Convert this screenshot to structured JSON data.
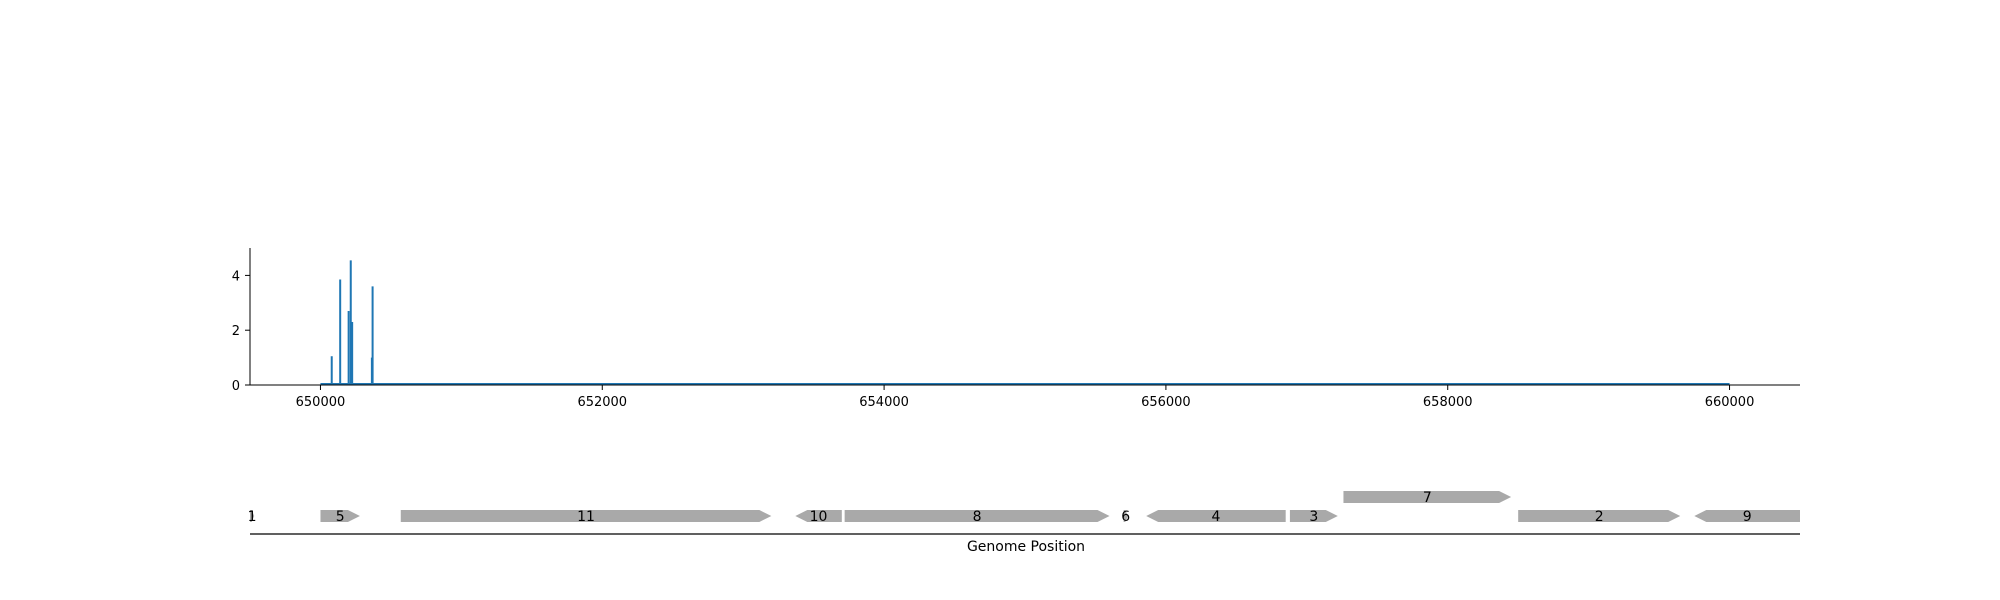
{
  "chart_data": [
    {
      "type": "bar",
      "xlim": [
        649500,
        660500
      ],
      "ylim": [
        0,
        5
      ],
      "xticks": [
        650000,
        652000,
        654000,
        656000,
        658000,
        660000
      ],
      "xtick_labels": [
        "650000",
        "652000",
        "654000",
        "656000",
        "658000",
        "660000"
      ],
      "yticks": [
        0,
        2,
        4
      ],
      "ytick_labels": [
        "0",
        "2",
        "4"
      ],
      "baseline": {
        "x": [
          650000,
          660000
        ],
        "y": 0
      },
      "series": [
        {
          "x": [
            650080,
            650140,
            650200,
            650215,
            650225,
            650365,
            650370
          ],
          "values": [
            1.05,
            3.85,
            2.7,
            4.55,
            2.3,
            1.0,
            3.6
          ],
          "color": "#1f77b4"
        }
      ]
    },
    {
      "type": "gene-map",
      "xlabel": "Genome Position",
      "xlim": [
        649500,
        660500
      ],
      "gene_color": "#a9a9a9",
      "genes": [
        {
          "label": "1",
          "start": 649500,
          "end": 649530,
          "strand": "+",
          "row": 0
        },
        {
          "label": "5",
          "start": 650000,
          "end": 650280,
          "strand": "+",
          "row": 0
        },
        {
          "label": "11",
          "start": 650570,
          "end": 653200,
          "strand": "+",
          "row": 0
        },
        {
          "label": "10",
          "start": 653370,
          "end": 653700,
          "strand": "-",
          "row": 0
        },
        {
          "label": "8",
          "start": 653720,
          "end": 655600,
          "strand": "+",
          "row": 0
        },
        {
          "label": "6",
          "start": 655700,
          "end": 655730,
          "strand": "+",
          "row": 0
        },
        {
          "label": "4",
          "start": 655860,
          "end": 656850,
          "strand": "-",
          "row": 0
        },
        {
          "label": "3",
          "start": 656880,
          "end": 657220,
          "strand": "+",
          "row": 0
        },
        {
          "label": "7",
          "start": 657260,
          "end": 658450,
          "strand": "+",
          "row": 1
        },
        {
          "label": "2",
          "start": 658500,
          "end": 659650,
          "strand": "+",
          "row": 0
        },
        {
          "label": "9",
          "start": 659750,
          "end": 660500,
          "strand": "-",
          "row": 0
        }
      ]
    }
  ]
}
